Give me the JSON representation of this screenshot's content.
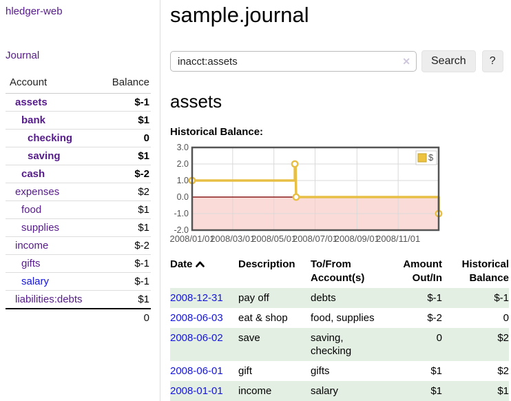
{
  "app": {
    "brand": "hledger-web"
  },
  "sidebar": {
    "journal_link": "Journal",
    "accounts": {
      "col_account": "Account",
      "col_balance": "Balance",
      "rows": [
        {
          "name": "assets",
          "balance": "$-1",
          "indent": 1,
          "bold": true,
          "neg": "strong"
        },
        {
          "name": "bank",
          "balance": "$1",
          "indent": 2,
          "bold": true,
          "neg": null
        },
        {
          "name": "checking",
          "balance": "0",
          "indent": 3,
          "bold": true,
          "neg": null
        },
        {
          "name": "saving",
          "balance": "$1",
          "indent": 3,
          "bold": true,
          "neg": null
        },
        {
          "name": "cash",
          "balance": "$-2",
          "indent": 2,
          "bold": true,
          "neg": "strong"
        },
        {
          "name": "expenses",
          "balance": "$2",
          "indent": 1,
          "bold": false,
          "neg": null
        },
        {
          "name": "food",
          "balance": "$1",
          "indent": 2,
          "bold": false,
          "neg": null
        },
        {
          "name": "supplies",
          "balance": "$1",
          "indent": 2,
          "bold": false,
          "neg": null
        },
        {
          "name": "income",
          "balance": "$-2",
          "indent": 1,
          "bold": false,
          "neg": "soft"
        },
        {
          "name": "gifts",
          "balance": "$-1",
          "indent": 2,
          "bold": false,
          "neg": "soft"
        },
        {
          "name": "salary",
          "balance": "$-1",
          "indent": 2,
          "bold": false,
          "neg": "soft",
          "link": "blue"
        },
        {
          "name": "liabilities:debts",
          "balance": "$1",
          "indent": 1,
          "bold": false,
          "neg": null
        }
      ],
      "total": "0"
    }
  },
  "header": {
    "title": "sample.journal"
  },
  "search": {
    "value": "inacct:assets",
    "clear_icon": "✕",
    "button": "Search",
    "help": "?"
  },
  "main": {
    "account_heading": "assets",
    "chart_label": "Historical Balance:"
  },
  "chart_data": {
    "type": "line",
    "title": "Historical Balance of assets",
    "step": true,
    "legend": [
      {
        "label": "$",
        "color": "#edc240"
      }
    ],
    "legend_position": "top-right",
    "grid": true,
    "ylim": [
      -2,
      3
    ],
    "yticks": [
      "3.0",
      "2.0",
      "1.0",
      "0.0",
      "-1.0",
      "-2.0"
    ],
    "xrange": [
      "2008-01-01",
      "2008-12-31"
    ],
    "xticks": [
      {
        "date": "2008-01-01",
        "label": "2008/01/01"
      },
      {
        "date": "2008-03-01",
        "label": "2008/03/01"
      },
      {
        "date": "2008-05-01",
        "label": "2008/05/01"
      },
      {
        "date": "2008-07-01",
        "label": "2008/07/01"
      },
      {
        "date": "2008-09-01",
        "label": "2008/09/01"
      },
      {
        "date": "2008-11-01",
        "label": "2008/11/01"
      }
    ],
    "points": [
      [
        "2008-01-01",
        1
      ],
      [
        "2008-06-01",
        1
      ],
      [
        "2008-06-01",
        2
      ],
      [
        "2008-06-02",
        2
      ],
      [
        "2008-06-03",
        0
      ],
      [
        "2008-12-31",
        0
      ],
      [
        "2008-12-31",
        -1
      ]
    ],
    "markers": [
      [
        "2008-01-01",
        1
      ],
      [
        "2008-06-01",
        2
      ],
      [
        "2008-06-03",
        0
      ],
      [
        "2008-12-31",
        -1
      ]
    ],
    "colors": {
      "series": "#e8bf45",
      "marker_fill": "#ffffff",
      "negative_fill": "#fbdbd8",
      "zero_line": "#8b1a1a",
      "grid": "#d9d9d9",
      "border": "#545454",
      "tick_text": "#545454",
      "legend_border": "#cccccc",
      "swatch_border": "#c7a52e"
    }
  },
  "register": {
    "columns": {
      "date": "Date",
      "description": "Description",
      "accounts": [
        "To/From",
        "Account(s)"
      ],
      "amount": [
        "Amount",
        "Out/In"
      ],
      "balance": [
        "Historical",
        "Balance"
      ]
    },
    "rows": [
      {
        "date": "2008-12-31",
        "description": "pay off",
        "accounts": "debts",
        "amount": "$-1",
        "amount_neg": true,
        "balance": "$-1",
        "balance_neg": true
      },
      {
        "date": "2008-06-03",
        "description": "eat & shop",
        "accounts": "food, supplies",
        "amount": "$-2",
        "amount_neg": true,
        "balance": "0",
        "balance_neg": false
      },
      {
        "date": "2008-06-02",
        "description": "save",
        "accounts": "saving, checking",
        "amount": "0",
        "amount_neg": false,
        "balance": "$2",
        "balance_neg": false
      },
      {
        "date": "2008-06-01",
        "description": "gift",
        "accounts": "gifts",
        "amount": "$1",
        "amount_neg": false,
        "balance": "$2",
        "balance_neg": false
      },
      {
        "date": "2008-01-01",
        "description": "income",
        "accounts": "salary",
        "amount": "$1",
        "amount_neg": false,
        "balance": "$1",
        "balance_neg": false
      }
    ]
  },
  "colors": {
    "link_purple": "#551a8b",
    "link_blue": "#1414dd",
    "negative_strong": "#8c1b1b",
    "negative_soft": "#b26b6b",
    "row_green": "#e3efe3"
  }
}
